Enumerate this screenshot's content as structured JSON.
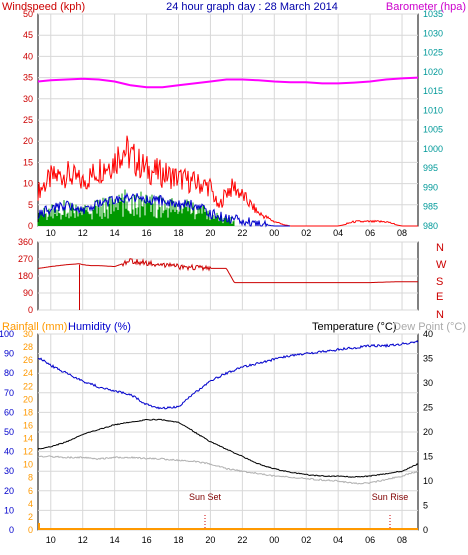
{
  "header": {
    "left_label": "Windspeed (kph)",
    "title": "24 hour graph day : 28 March 2014",
    "right_label": "Barometer (hpa)"
  },
  "bottom_header": {
    "rainfall_label": "Rainfall (mm)",
    "humidity_label": "Humidity (%)",
    "temperature_label": "Temperature (°C)",
    "dewpoint_label": "Dew Point (°C)"
  },
  "annotations": {
    "sunset": "Sun Set",
    "sunrise": "Sun Rise"
  },
  "colors": {
    "windspeed": "#ff0000",
    "gust": "#ff0000",
    "avg_wind": "#0000cc",
    "wind_green": "#009900",
    "barometer": "#ff00ff",
    "direction": "#cc0000",
    "humidity": "#0000cc",
    "temperature": "#000000",
    "dewpoint": "#b0b0b0",
    "rainfall": "#ff9900",
    "axis_left_top": "#cc0000",
    "axis_right_top": "#009999",
    "axis_left_bottom": "#0000cc",
    "axis_rain": "#ff9900",
    "grid": "#d8d8d8"
  },
  "chart_data": [
    {
      "type": "line",
      "title": "24 hour graph day : 28 March 2014",
      "x_ticks": [
        "10",
        "12",
        "14",
        "16",
        "18",
        "20",
        "22",
        "00",
        "02",
        "04",
        "06",
        "08"
      ],
      "windspeed_axis": {
        "label": "Windspeed (kph)",
        "ticks": [
          0,
          5,
          10,
          15,
          20,
          25,
          30,
          35,
          40,
          45,
          50
        ],
        "ylim": [
          0,
          50
        ]
      },
      "barometer_axis": {
        "label": "Barometer (hpa)",
        "ticks": [
          980,
          985,
          990,
          995,
          1000,
          1005,
          1010,
          1015,
          1020,
          1025,
          1030,
          1035
        ],
        "ylim": [
          980,
          1035
        ]
      },
      "series": [
        {
          "name": "Windspeed (kph)",
          "x": [
            9.2,
            10,
            11,
            12,
            13,
            14,
            14.5,
            15,
            16,
            17,
            18,
            19,
            20,
            20.5,
            21,
            21.5,
            22,
            22.5,
            23,
            23.5,
            24,
            25,
            26,
            27,
            28,
            29,
            30,
            31,
            32,
            33
          ],
          "y": [
            8,
            11,
            12,
            10,
            13,
            15,
            18,
            16,
            13,
            12,
            11,
            10,
            9,
            4,
            8,
            9,
            7,
            5,
            3,
            2,
            1,
            0,
            0,
            0,
            0,
            1,
            1,
            1,
            0,
            0
          ]
        },
        {
          "name": "Average wind",
          "x": [
            9.2,
            10,
            11,
            12,
            13,
            14,
            15,
            16,
            17,
            18,
            19,
            20,
            21,
            22,
            23,
            24,
            25
          ],
          "y": [
            3,
            4,
            5,
            4,
            5,
            6,
            7,
            6,
            6,
            5,
            5,
            3,
            2,
            1,
            0.5,
            0,
            0
          ]
        },
        {
          "name": "Barometer (hpa)",
          "x": [
            9.2,
            10,
            11,
            12,
            13,
            14,
            15,
            16,
            17,
            18,
            19,
            20,
            21,
            22,
            23,
            24,
            25,
            26,
            27,
            28,
            29,
            30,
            31,
            32,
            33
          ],
          "y": [
            1017.5,
            1017.8,
            1018,
            1018.2,
            1018,
            1017.5,
            1016.5,
            1016,
            1016,
            1016.5,
            1017,
            1017.5,
            1018,
            1018,
            1017.8,
            1017.5,
            1017.3,
            1017.3,
            1017,
            1017,
            1017.2,
            1017.5,
            1018,
            1018.3,
            1018.5
          ]
        }
      ]
    },
    {
      "type": "line",
      "title": "",
      "y_ticks": [
        0,
        90,
        180,
        270,
        360
      ],
      "ylim": [
        0,
        360
      ],
      "compass_labels": [
        "N",
        "W",
        "S",
        "E",
        "N"
      ],
      "series": [
        {
          "name": "",
          "x": [
            9.2,
            10,
            11,
            11.8,
            12,
            12.5,
            13,
            14,
            15,
            16,
            17,
            18,
            19,
            20,
            21,
            21.5,
            22,
            23,
            24,
            25,
            26,
            27,
            28,
            29,
            30,
            31,
            32,
            33
          ],
          "y": [
            220,
            230,
            240,
            245,
            240,
            235,
            235,
            230,
            260,
            250,
            240,
            230,
            225,
            220,
            220,
            145,
            145,
            145,
            145,
            145,
            145,
            145,
            145,
            145,
            145,
            148,
            150,
            150
          ]
        }
      ]
    },
    {
      "type": "line",
      "title": "",
      "x_ticks": [
        "10",
        "12",
        "14",
        "16",
        "18",
        "20",
        "22",
        "00",
        "02",
        "04",
        "06",
        "08"
      ],
      "rainfall_axis": {
        "label": "Rainfall (mm)",
        "ticks": [
          0,
          2,
          4,
          6,
          8,
          10,
          12,
          14,
          16,
          18,
          20,
          22,
          24,
          26,
          28,
          30
        ],
        "ylim": [
          0,
          30
        ]
      },
      "humidity_axis": {
        "label": "Humidity (%)",
        "ticks": [
          0,
          10,
          20,
          30,
          40,
          50,
          60,
          70,
          80,
          90,
          100
        ],
        "ylim": [
          0,
          100
        ]
      },
      "temperature_axis": {
        "label": "Temperature (°C)",
        "ticks": [
          0,
          5,
          10,
          15,
          20,
          25,
          30,
          35,
          40
        ],
        "ylim": [
          0,
          40
        ]
      },
      "series": [
        {
          "name": "Humidity (%)",
          "x": [
            9.2,
            10,
            11,
            12,
            13,
            14,
            15,
            16,
            17,
            18,
            19,
            20,
            21,
            22,
            23,
            24,
            25,
            26,
            27,
            28,
            29,
            30,
            31,
            32,
            33
          ],
          "y": [
            88,
            84,
            80,
            76,
            73,
            71,
            69,
            64,
            62,
            63,
            70,
            76,
            80,
            83,
            85,
            87,
            89,
            90,
            91,
            92,
            93,
            94,
            94,
            95,
            96
          ]
        },
        {
          "name": "Temperature (°C)",
          "x": [
            9.2,
            10,
            11,
            12,
            13,
            14,
            15,
            16,
            17,
            18,
            19,
            20,
            21,
            22,
            23,
            24,
            25,
            26,
            27,
            28,
            29,
            30,
            31,
            32,
            33
          ],
          "y": [
            16.5,
            17,
            18,
            19.5,
            20.5,
            21.5,
            22,
            22.5,
            22.5,
            22,
            20,
            18,
            16.5,
            15,
            13.5,
            12.5,
            11.8,
            11.3,
            11,
            11,
            10.8,
            11,
            11.5,
            12,
            13.5
          ]
        },
        {
          "name": "Dew Point (°C)",
          "x": [
            9.2,
            10,
            11,
            12,
            13,
            14,
            15,
            16,
            17,
            18,
            19,
            20,
            21,
            22,
            23,
            24,
            25,
            26,
            27,
            28,
            29,
            30,
            31,
            32,
            33
          ],
          "y": [
            15,
            15,
            14.8,
            14.8,
            14.5,
            14.8,
            14.8,
            14.6,
            14.5,
            14.2,
            14,
            13.5,
            12.5,
            12,
            11.5,
            11,
            10.8,
            10.5,
            10.2,
            10,
            9.5,
            9.6,
            10.3,
            11,
            12
          ]
        },
        {
          "name": "Rainfall (mm)",
          "x": [
            9.2,
            33
          ],
          "y": [
            0,
            0
          ]
        }
      ]
    }
  ]
}
